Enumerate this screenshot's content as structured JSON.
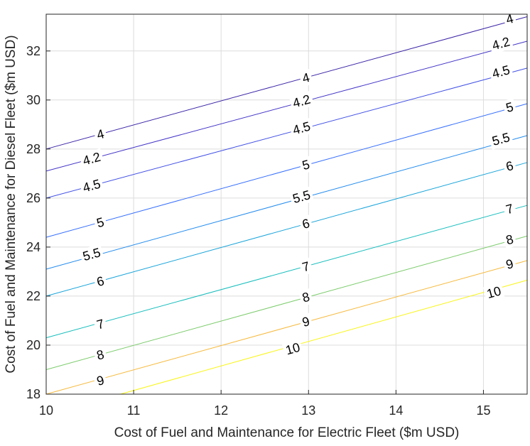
{
  "chart_data": {
    "type": "contour",
    "xlabel": "Cost of Fuel and Maintenance for Electric Fleet ($m USD)",
    "ylabel": "Cost of Fuel and Maintenance for Diesel Fleet ($m USD)",
    "xlim": [
      10,
      15.5
    ],
    "ylim": [
      18,
      33.5
    ],
    "xticks": [
      10,
      11,
      12,
      13,
      14,
      15
    ],
    "yticks": [
      18,
      20,
      22,
      24,
      26,
      28,
      30,
      32
    ],
    "grid": true,
    "colormap": "parula",
    "contours": [
      {
        "level": 4,
        "label": "4",
        "color": "#3e26a8",
        "points": [
          [
            10,
            28.0
          ],
          [
            15.5,
            33.4
          ]
        ]
      },
      {
        "level": 4.2,
        "label": "4.2",
        "color": "#4436c8",
        "points": [
          [
            10,
            27.1
          ],
          [
            15.5,
            32.4
          ]
        ]
      },
      {
        "level": 4.5,
        "label": "4.5",
        "color": "#4352e5",
        "points": [
          [
            10,
            26.0
          ],
          [
            15.5,
            31.3
          ]
        ]
      },
      {
        "level": 5,
        "label": "5",
        "color": "#3870fc",
        "points": [
          [
            10,
            24.4
          ],
          [
            15.5,
            29.85
          ]
        ]
      },
      {
        "level": 5.5,
        "label": "5.5",
        "color": "#248cee",
        "points": [
          [
            10,
            23.1
          ],
          [
            15.5,
            28.55
          ]
        ]
      },
      {
        "level": 6,
        "label": "6",
        "color": "#1aa5db",
        "points": [
          [
            10,
            22.0
          ],
          [
            15.5,
            27.45
          ]
        ]
      },
      {
        "level": 7,
        "label": "7",
        "color": "#17bdbd",
        "points": [
          [
            10,
            20.3
          ],
          [
            15.5,
            25.7
          ]
        ]
      },
      {
        "level": 8,
        "label": "8",
        "color": "#7ccc6c",
        "points": [
          [
            10,
            19.0
          ],
          [
            15.5,
            24.45
          ]
        ]
      },
      {
        "level": 9,
        "label": "9",
        "color": "#f6ba3e",
        "points": [
          [
            10,
            18.0
          ],
          [
            15.5,
            23.45
          ]
        ]
      },
      {
        "level": 10,
        "label": "10",
        "color": "#f9f514",
        "points": [
          [
            10.85,
            18.0
          ],
          [
            15.5,
            22.65
          ]
        ]
      }
    ],
    "contour_labels": [
      {
        "text": "4",
        "x": 10.62,
        "y": 28.6
      },
      {
        "text": "4.2",
        "x": 10.52,
        "y": 27.6
      },
      {
        "text": "4.5",
        "x": 10.52,
        "y": 26.5
      },
      {
        "text": "5",
        "x": 10.62,
        "y": 25.0
      },
      {
        "text": "5.5",
        "x": 10.52,
        "y": 23.7
      },
      {
        "text": "6",
        "x": 10.62,
        "y": 22.6
      },
      {
        "text": "7",
        "x": 10.62,
        "y": 20.85
      },
      {
        "text": "8",
        "x": 10.62,
        "y": 19.6
      },
      {
        "text": "9",
        "x": 10.62,
        "y": 18.55
      },
      {
        "text": "4",
        "x": 12.97,
        "y": 30.9
      },
      {
        "text": "4.2",
        "x": 12.92,
        "y": 29.95
      },
      {
        "text": "4.5",
        "x": 12.92,
        "y": 28.85
      },
      {
        "text": "5",
        "x": 12.97,
        "y": 27.35
      },
      {
        "text": "5.5",
        "x": 12.92,
        "y": 26.05
      },
      {
        "text": "6",
        "x": 12.97,
        "y": 24.95
      },
      {
        "text": "7",
        "x": 12.97,
        "y": 23.2
      },
      {
        "text": "8",
        "x": 12.97,
        "y": 21.95
      },
      {
        "text": "9",
        "x": 12.97,
        "y": 20.95
      },
      {
        "text": "10",
        "x": 12.82,
        "y": 19.85
      },
      {
        "text": "4",
        "x": 15.3,
        "y": 33.3
      },
      {
        "text": "4.2",
        "x": 15.2,
        "y": 32.3
      },
      {
        "text": "4.5",
        "x": 15.2,
        "y": 31.15
      },
      {
        "text": "5",
        "x": 15.3,
        "y": 29.7
      },
      {
        "text": "5.5",
        "x": 15.2,
        "y": 28.4
      },
      {
        "text": "6",
        "x": 15.3,
        "y": 27.3
      },
      {
        "text": "7",
        "x": 15.3,
        "y": 25.55
      },
      {
        "text": "8",
        "x": 15.3,
        "y": 24.3
      },
      {
        "text": "9",
        "x": 15.3,
        "y": 23.3
      },
      {
        "text": "10",
        "x": 15.12,
        "y": 22.15
      }
    ]
  }
}
